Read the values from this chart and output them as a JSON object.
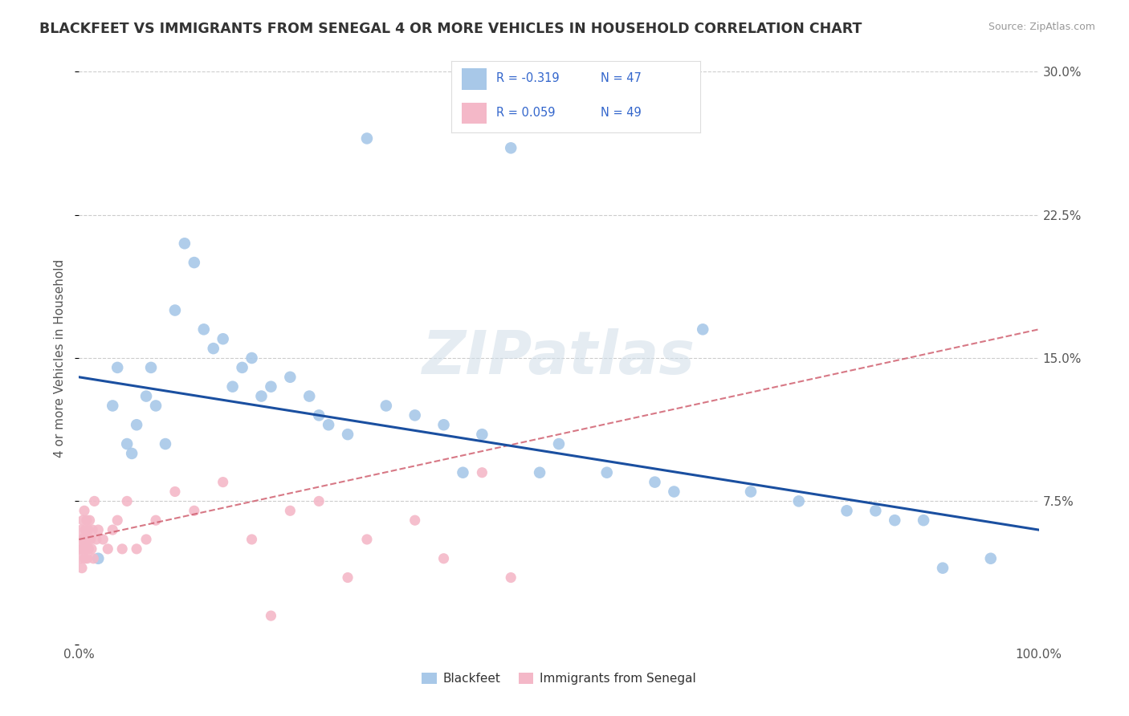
{
  "title": "BLACKFEET VS IMMIGRANTS FROM SENEGAL 4 OR MORE VEHICLES IN HOUSEHOLD CORRELATION CHART",
  "source": "Source: ZipAtlas.com",
  "ylabel": "4 or more Vehicles in Household",
  "xlim": [
    0,
    100
  ],
  "ylim": [
    0,
    30
  ],
  "yticks": [
    0,
    7.5,
    15.0,
    22.5,
    30.0
  ],
  "yticklabels": [
    "",
    "7.5%",
    "15.0%",
    "22.5%",
    "30.0%"
  ],
  "xticks": [
    0,
    25,
    50,
    75,
    100
  ],
  "xticklabels": [
    "0.0%",
    "",
    "",
    "",
    "100.0%"
  ],
  "legend_R1": "-0.319",
  "legend_N1": "47",
  "legend_R2": "0.059",
  "legend_N2": "49",
  "label1": "Blackfeet",
  "label2": "Immigrants from Senegal",
  "color1": "#a8c8e8",
  "color2": "#f4b8c8",
  "trendline1_color": "#1a4fa0",
  "trendline2_color": "#d06070",
  "watermark": "ZIPatlas",
  "blackfeet_x": [
    2.0,
    3.5,
    4.0,
    5.0,
    5.5,
    6.0,
    7.0,
    7.5,
    8.0,
    9.0,
    10.0,
    11.0,
    12.0,
    13.0,
    14.0,
    15.0,
    16.0,
    17.0,
    18.0,
    19.0,
    20.0,
    22.0,
    24.0,
    25.0,
    26.0,
    28.0,
    30.0,
    32.0,
    35.0,
    38.0,
    40.0,
    42.0,
    45.0,
    48.0,
    50.0,
    55.0,
    60.0,
    62.0,
    65.0,
    70.0,
    75.0,
    80.0,
    83.0,
    85.0,
    88.0,
    90.0,
    95.0
  ],
  "blackfeet_y": [
    4.5,
    12.5,
    14.5,
    10.5,
    10.0,
    11.5,
    13.0,
    14.5,
    12.5,
    10.5,
    17.5,
    21.0,
    20.0,
    16.5,
    15.5,
    16.0,
    13.5,
    14.5,
    15.0,
    13.0,
    13.5,
    14.0,
    13.0,
    12.0,
    11.5,
    11.0,
    26.5,
    12.5,
    12.0,
    11.5,
    9.0,
    11.0,
    26.0,
    9.0,
    10.5,
    9.0,
    8.5,
    8.0,
    16.5,
    8.0,
    7.5,
    7.0,
    7.0,
    6.5,
    6.5,
    4.0,
    4.5
  ],
  "senegal_x": [
    0.1,
    0.15,
    0.2,
    0.25,
    0.3,
    0.35,
    0.4,
    0.45,
    0.5,
    0.55,
    0.6,
    0.65,
    0.7,
    0.75,
    0.8,
    0.85,
    0.9,
    0.95,
    1.0,
    1.1,
    1.2,
    1.3,
    1.4,
    1.5,
    1.6,
    1.8,
    2.0,
    2.5,
    3.0,
    3.5,
    4.0,
    4.5,
    5.0,
    6.0,
    7.0,
    8.0,
    10.0,
    12.0,
    15.0,
    18.0,
    20.0,
    22.0,
    25.0,
    28.0,
    30.0,
    35.0,
    38.0,
    42.0,
    45.0
  ],
  "senegal_y": [
    5.0,
    4.5,
    5.5,
    6.0,
    4.0,
    5.0,
    6.5,
    5.5,
    5.0,
    7.0,
    4.5,
    6.0,
    5.5,
    5.0,
    6.5,
    4.5,
    5.5,
    6.0,
    5.0,
    6.5,
    5.5,
    5.0,
    6.0,
    4.5,
    7.5,
    5.5,
    6.0,
    5.5,
    5.0,
    6.0,
    6.5,
    5.0,
    7.5,
    5.0,
    5.5,
    6.5,
    8.0,
    7.0,
    8.5,
    5.5,
    1.5,
    7.0,
    7.5,
    3.5,
    5.5,
    6.5,
    4.5,
    9.0,
    3.5
  ]
}
